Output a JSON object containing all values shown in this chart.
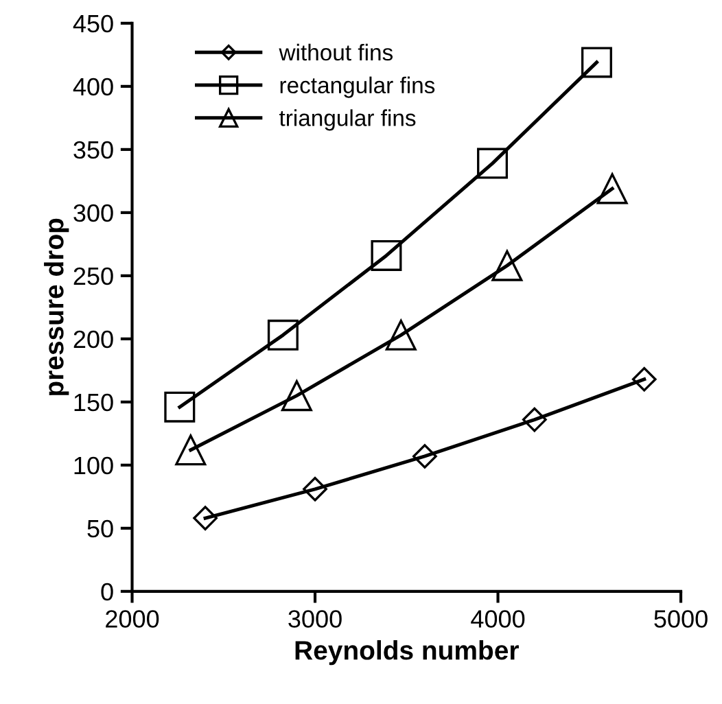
{
  "chart_data": {
    "type": "line",
    "xlabel": "Reynolds number",
    "ylabel": "pressure drop",
    "xlim": [
      2000,
      5000
    ],
    "xticks": [
      2000,
      3000,
      4000,
      5000
    ],
    "ylim": [
      0,
      450
    ],
    "yticks": [
      0,
      50,
      100,
      150,
      200,
      250,
      300,
      350,
      400,
      450
    ],
    "grid": false,
    "legend": "top left",
    "line_style": "solid",
    "series": [
      {
        "name": "without fins",
        "color": "#000000",
        "marker": "diamond",
        "x": [
          2400,
          3000,
          3600,
          4200,
          4800
        ],
        "values": [
          58,
          81,
          107,
          136,
          168
        ]
      },
      {
        "name": "rectangular fins",
        "color": "#000000",
        "marker": "square",
        "x": [
          2260,
          2825,
          3390,
          3970,
          4540
        ],
        "values": [
          146,
          203,
          266,
          339,
          419
        ]
      },
      {
        "name": "triangular fins",
        "color": "#000000",
        "marker": "triangle",
        "x": [
          2320,
          2900,
          3470,
          4050,
          4625
        ],
        "values": [
          112,
          155,
          203,
          258,
          319
        ]
      }
    ]
  }
}
